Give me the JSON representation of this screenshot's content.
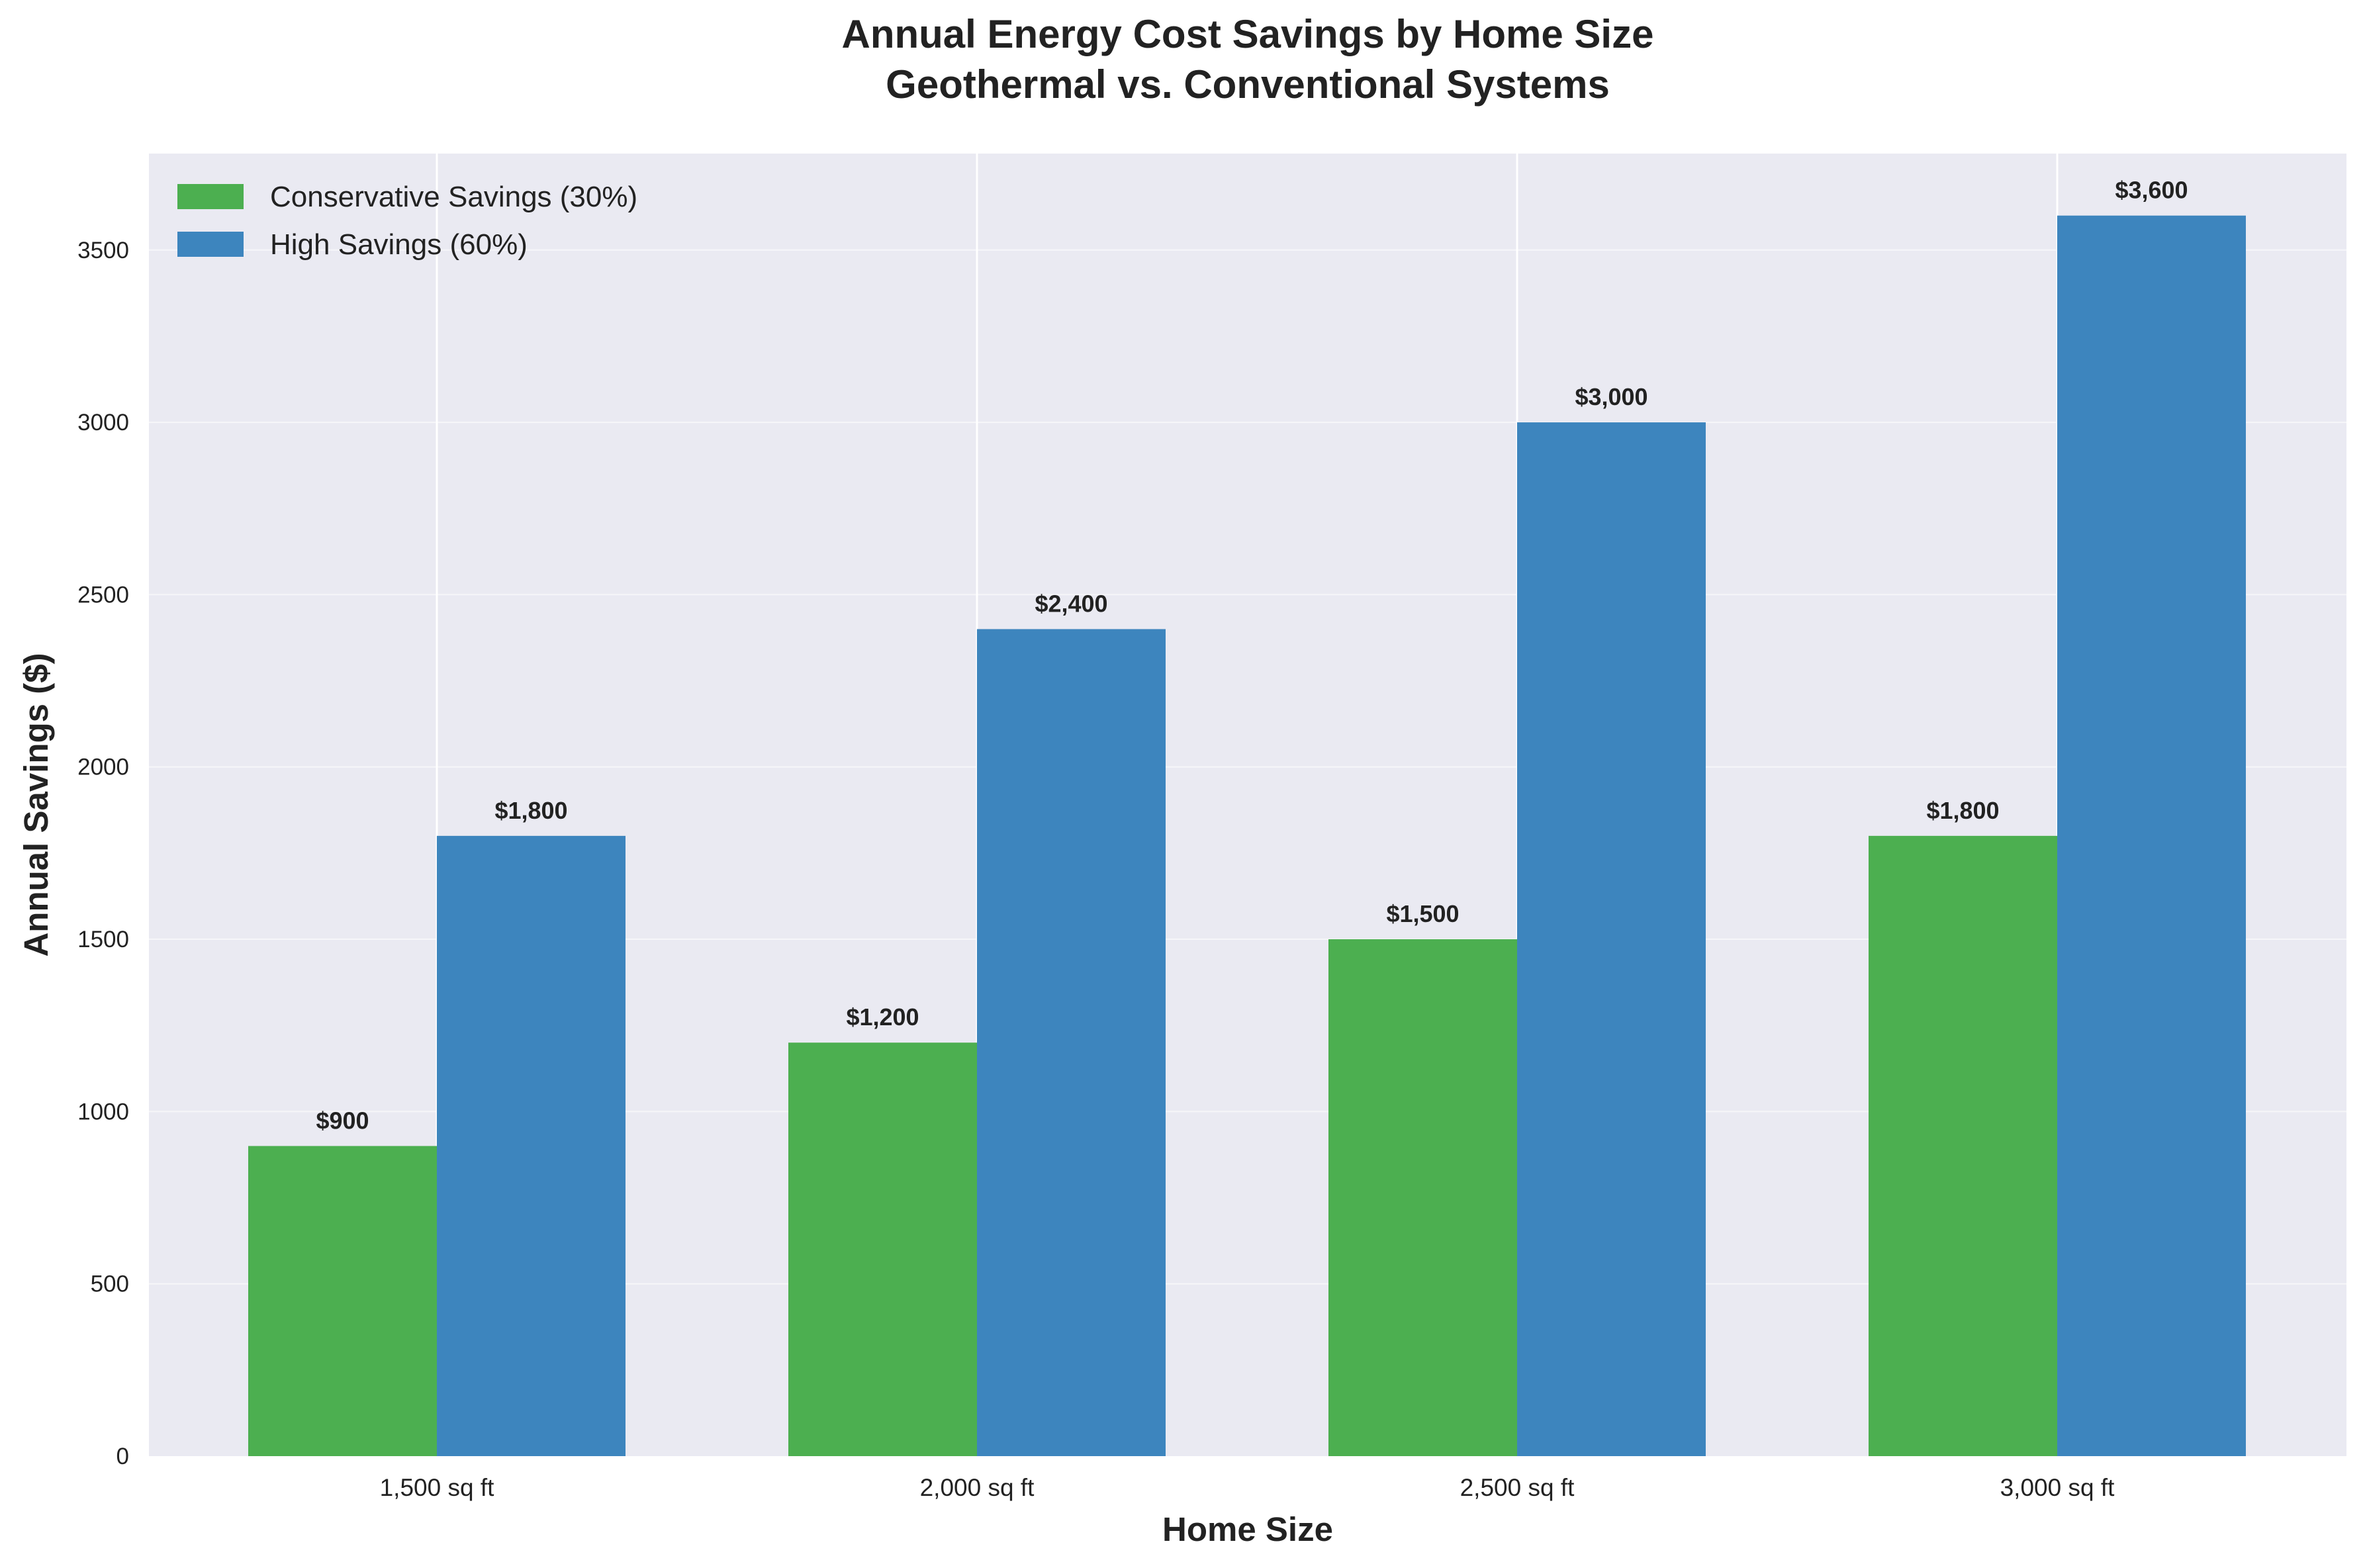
{
  "chart_data": {
    "type": "bar",
    "title": "Annual Energy Cost Savings by Home Size",
    "subtitle": "Geothermal vs. Conventional Systems",
    "xlabel": "Home Size",
    "ylabel": "Annual Savings ($)",
    "categories": [
      "1,500 sq ft",
      "2,000 sq ft",
      "2,500 sq ft",
      "3,000 sq ft"
    ],
    "series": [
      {
        "name": "Conservative Savings (30%)",
        "color": "#4CAF50",
        "values": [
          900,
          1200,
          1500,
          1800
        ],
        "labels": [
          "$900",
          "$1,200",
          "$1,500",
          "$1,800"
        ]
      },
      {
        "name": "High Savings (60%)",
        "color": "#3D85BE",
        "values": [
          1800,
          2400,
          3000,
          3600
        ],
        "labels": [
          "$1,800",
          "$2,400",
          "$3,000",
          "$3,600"
        ]
      }
    ],
    "ylim": [
      0,
      3780
    ],
    "yticks": [
      0,
      500,
      1000,
      1500,
      2000,
      2500,
      3000,
      3500
    ],
    "grid": true,
    "legend_position": "top-left",
    "background": "#EAEAF2"
  }
}
